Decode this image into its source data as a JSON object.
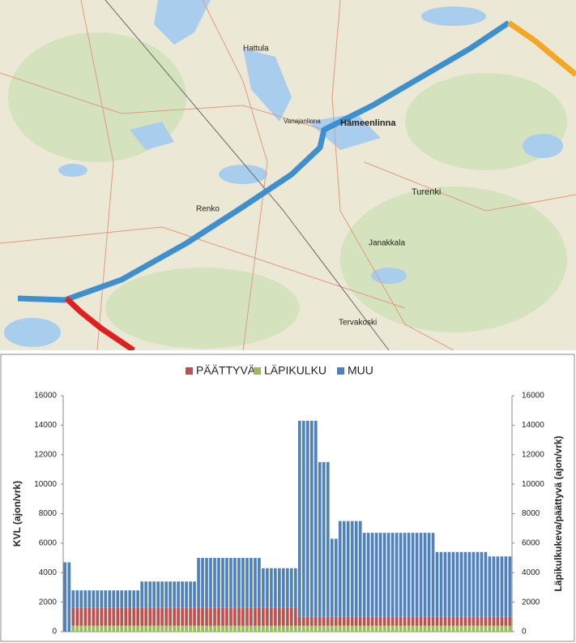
{
  "map": {
    "labels": [
      "Hattula",
      "Hämeenlinna",
      "Turenki",
      "Renko",
      "Tervakoski",
      "Janakkala",
      "Vanajanlinna"
    ]
  },
  "chart_data": {
    "type": "bar",
    "stacked": true,
    "y_label": "KVL (ajon/vrk)",
    "y2_label": "Läpikulkukeva/päättyvä (ajon/vrk)",
    "ylim": [
      0,
      16000
    ],
    "yticks": [
      0,
      2000,
      4000,
      6000,
      8000,
      10000,
      12000,
      14000,
      16000
    ],
    "y2lim": [
      0,
      16000
    ],
    "y2ticks": [
      0,
      2000,
      4000,
      6000,
      8000,
      10000,
      12000,
      14000,
      16000
    ],
    "legend": "top",
    "series": [
      {
        "name": "PÄÄTTYVÄ",
        "color": "#c0504d",
        "values": [
          0,
          0,
          1200,
          1200,
          1200,
          1200,
          1200,
          1200,
          1200,
          1200,
          1200,
          1200,
          1200,
          1200,
          1200,
          1200,
          1200,
          1200,
          1200,
          1200,
          1200,
          1200,
          1200,
          1200,
          1200,
          1200,
          1200,
          1200,
          1200,
          1200,
          1200,
          1200,
          1200,
          1200,
          1200,
          1200,
          1200,
          1200,
          1200,
          1200,
          1200,
          1200,
          1200,
          1200,
          1200,
          1200,
          1200,
          1200,
          1200,
          1200,
          1200,
          1200,
          1200,
          1200,
          1200,
          1200,
          1200,
          1200,
          600,
          600,
          600,
          600,
          600,
          600,
          600,
          600,
          600,
          600,
          600,
          600,
          600,
          600,
          600,
          600,
          600,
          600,
          600,
          600,
          600,
          600,
          600,
          600,
          600,
          600,
          600,
          600,
          600,
          600,
          600,
          600,
          600,
          600,
          600,
          600,
          600,
          600,
          600,
          600,
          600,
          600,
          600,
          600,
          600,
          600,
          600,
          600,
          600,
          600,
          600,
          600,
          600
        ]
      },
      {
        "name": "LÄPIKULKU",
        "color": "#9bbb59",
        "values": [
          0,
          0,
          400,
          400,
          400,
          400,
          400,
          400,
          400,
          400,
          400,
          400,
          400,
          400,
          400,
          400,
          400,
          400,
          400,
          400,
          400,
          400,
          400,
          400,
          400,
          400,
          400,
          400,
          400,
          400,
          400,
          400,
          400,
          400,
          400,
          400,
          400,
          400,
          400,
          400,
          400,
          400,
          400,
          400,
          400,
          400,
          400,
          400,
          400,
          400,
          400,
          400,
          400,
          400,
          400,
          400,
          400,
          400,
          400,
          400,
          400,
          400,
          400,
          400,
          400,
          400,
          400,
          400,
          400,
          400,
          400,
          400,
          400,
          400,
          400,
          400,
          400,
          400,
          400,
          400,
          400,
          400,
          400,
          400,
          400,
          400,
          400,
          400,
          400,
          400,
          400,
          400,
          400,
          400,
          400,
          400,
          400,
          400,
          400,
          400,
          400,
          400,
          400,
          400,
          400,
          400,
          400,
          400,
          400,
          400,
          400
        ]
      },
      {
        "name": "MUU",
        "color": "#4f81bd",
        "values": [
          4700,
          4700,
          1200,
          1200,
          1200,
          1200,
          1200,
          1200,
          1200,
          1200,
          1200,
          1200,
          1200,
          1200,
          1200,
          1200,
          1200,
          1200,
          1200,
          1800,
          1800,
          1800,
          1800,
          1800,
          1800,
          1800,
          1800,
          1800,
          1800,
          1800,
          1800,
          1800,
          1800,
          3400,
          3400,
          3400,
          3400,
          3400,
          3400,
          3400,
          3400,
          3400,
          3400,
          3400,
          3400,
          3400,
          3400,
          3400,
          3400,
          2700,
          2700,
          2700,
          2700,
          2700,
          2700,
          2700,
          2700,
          2700,
          13300,
          13300,
          13300,
          13300,
          13300,
          10500,
          10500,
          10500,
          5300,
          5300,
          6500,
          6500,
          6500,
          6500,
          6500,
          6500,
          5700,
          5700,
          5700,
          5700,
          5700,
          5700,
          5700,
          5700,
          5700,
          5700,
          5700,
          5700,
          5700,
          5700,
          5700,
          5700,
          5700,
          5700,
          4400,
          4400,
          4400,
          4400,
          4400,
          4400,
          4400,
          4400,
          4400,
          4400,
          4400,
          4400,
          4400,
          4100,
          4100,
          4100,
          4100,
          4100,
          4100
        ]
      }
    ]
  }
}
